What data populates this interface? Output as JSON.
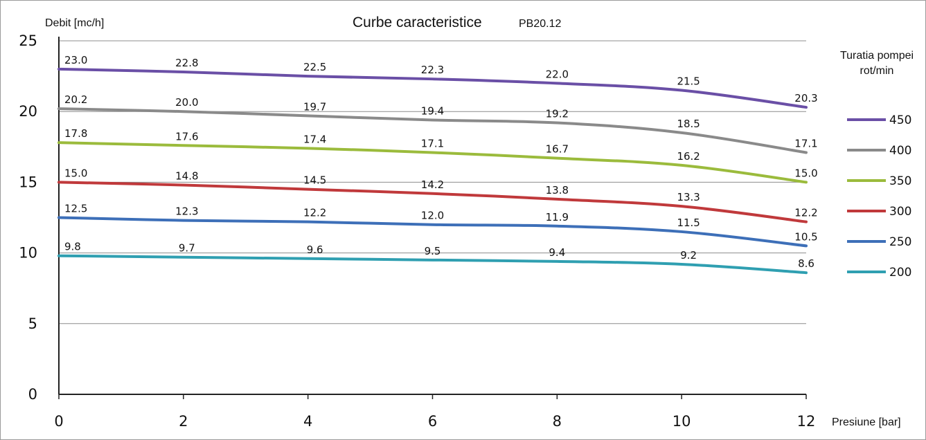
{
  "chart_data": {
    "type": "line",
    "title": "Curbe caracteristice",
    "subtitle": "PB20.12",
    "xlabel": "Presiune [bar]",
    "ylabel": "Debit [mc/h]",
    "x": [
      0,
      2,
      4,
      6,
      8,
      10,
      12
    ],
    "xlim": [
      0,
      12
    ],
    "ylim": [
      0,
      25
    ],
    "x_ticks": [
      "0",
      "2",
      "4",
      "6",
      "8",
      "10",
      "12"
    ],
    "y_ticks": [
      "0",
      "5",
      "10",
      "15",
      "20",
      "25"
    ],
    "grid": "horizontal",
    "legend": {
      "title_line1": "Turatia pompei",
      "title_line2": "rot/min",
      "position": "right"
    },
    "series": [
      {
        "name": "450",
        "color": "#6a4fa6",
        "values": [
          23.0,
          22.8,
          22.5,
          22.3,
          22.0,
          21.5,
          20.3
        ],
        "labels": [
          "23.0",
          "22.8",
          "22.5",
          "22.3",
          "22.0",
          "21.5",
          "20.3"
        ]
      },
      {
        "name": "400",
        "color": "#8a8a8a",
        "values": [
          20.2,
          20.0,
          19.7,
          19.4,
          19.2,
          18.5,
          17.1
        ],
        "labels": [
          "20.2",
          "20.0",
          "19.7",
          "19.4",
          "19.2",
          "18.5",
          "17.1"
        ]
      },
      {
        "name": "350",
        "color": "#9bbb3c",
        "values": [
          17.8,
          17.6,
          17.4,
          17.1,
          16.7,
          16.2,
          15.0
        ],
        "labels": [
          "17.8",
          "17.6",
          "17.4",
          "17.1",
          "16.7",
          "16.2",
          "15.0"
        ]
      },
      {
        "name": "300",
        "color": "#c0393b",
        "values": [
          15.0,
          14.8,
          14.5,
          14.2,
          13.8,
          13.3,
          12.2
        ],
        "labels": [
          "15.0",
          "14.8",
          "14.5",
          "14.2",
          "13.8",
          "13.3",
          "12.2"
        ]
      },
      {
        "name": "250",
        "color": "#3d6fb8",
        "values": [
          12.5,
          12.3,
          12.2,
          12.0,
          11.9,
          11.5,
          10.5
        ],
        "labels": [
          "12.5",
          "12.3",
          "12.2",
          "12.0",
          "11.9",
          "11.5",
          "10.5"
        ]
      },
      {
        "name": "200",
        "color": "#2f9fb1",
        "values": [
          9.8,
          9.7,
          9.6,
          9.5,
          9.4,
          9.2,
          8.6
        ],
        "labels": [
          "9.8",
          "9.7",
          "9.6",
          "9.5",
          "9.4",
          "9.2",
          "8.6"
        ]
      }
    ]
  }
}
